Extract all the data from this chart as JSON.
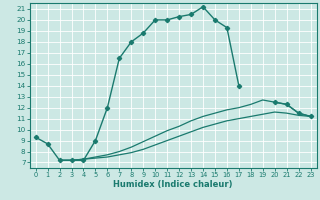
{
  "xlabel": "Humidex (Indice chaleur)",
  "bg_color": "#cce8e4",
  "line_color": "#1a7a6e",
  "grid_color": "#ffffff",
  "xlim": [
    -0.5,
    23.5
  ],
  "ylim": [
    6.5,
    21.5
  ],
  "xticks": [
    0,
    1,
    2,
    3,
    4,
    5,
    6,
    7,
    8,
    9,
    10,
    11,
    12,
    13,
    14,
    15,
    16,
    17,
    18,
    19,
    20,
    21,
    22,
    23
  ],
  "yticks": [
    7,
    8,
    9,
    10,
    11,
    12,
    13,
    14,
    15,
    16,
    17,
    18,
    19,
    20,
    21
  ],
  "series0_x": [
    0,
    1,
    2,
    3,
    4,
    5,
    6,
    7,
    8,
    9,
    10,
    11,
    12,
    13,
    14,
    15,
    16,
    17
  ],
  "series0_y": [
    9.3,
    8.7,
    7.2,
    7.2,
    7.2,
    9.0,
    12.0,
    16.5,
    18.0,
    18.8,
    20.0,
    20.0,
    20.3,
    20.5,
    21.2,
    20.0,
    19.3,
    14.0
  ],
  "series1_x": [
    2,
    3,
    4,
    5,
    6,
    7,
    8,
    9,
    10,
    11,
    12,
    13,
    14,
    15,
    16,
    17,
    18,
    19,
    20,
    21,
    22,
    23
  ],
  "series1_y": [
    7.2,
    7.2,
    7.3,
    7.4,
    7.5,
    7.7,
    7.9,
    8.2,
    8.6,
    9.0,
    9.4,
    9.8,
    10.2,
    10.5,
    10.8,
    11.0,
    11.2,
    11.4,
    11.6,
    11.5,
    11.3,
    11.2
  ],
  "series2_x": [
    2,
    3,
    4,
    5,
    6,
    7,
    8,
    9,
    10,
    11,
    12,
    13,
    14,
    15,
    16,
    17,
    18,
    19,
    20,
    21,
    22,
    23
  ],
  "series2_y": [
    7.2,
    7.2,
    7.3,
    7.5,
    7.7,
    8.0,
    8.4,
    8.9,
    9.4,
    9.9,
    10.3,
    10.8,
    11.2,
    11.5,
    11.8,
    12.0,
    12.3,
    12.7,
    12.5,
    12.3,
    11.5,
    11.2
  ],
  "series3_x": [
    20,
    21,
    22,
    23
  ],
  "series3_y": [
    12.5,
    12.3,
    11.5,
    11.2
  ]
}
